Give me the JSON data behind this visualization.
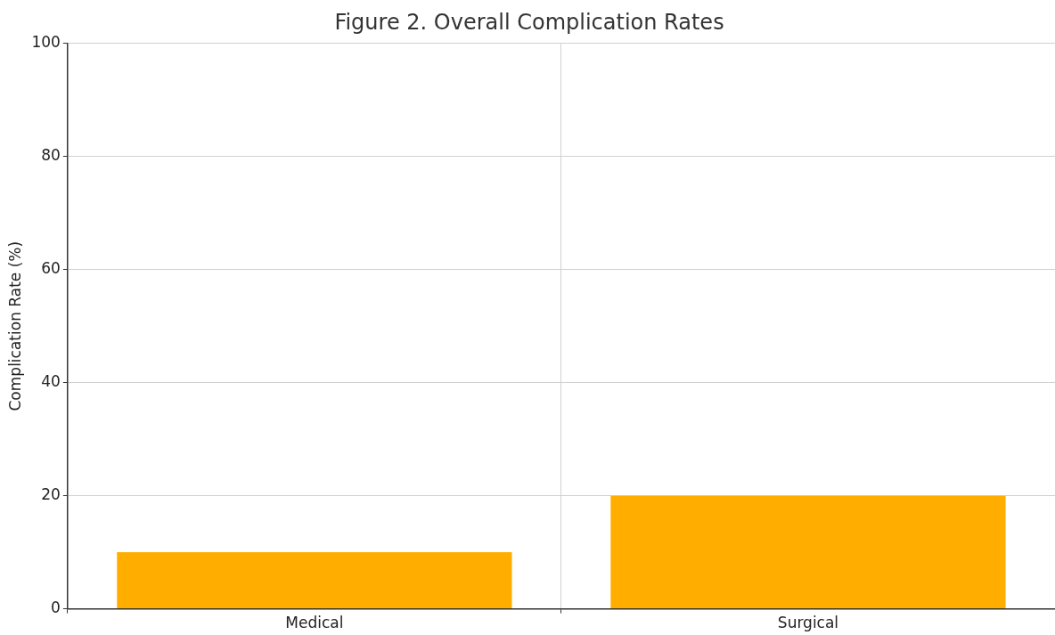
{
  "chart_data": {
    "type": "bar",
    "title": "Figure 2. Overall Complication Rates",
    "ylabel": "Complication Rate (%)",
    "categories": [
      "Medical",
      "Surgical"
    ],
    "values": [
      10,
      20
    ],
    "color": "#ffae00",
    "ylim": [
      0,
      100
    ],
    "yticks": [
      0,
      20,
      40,
      60,
      80,
      100
    ],
    "grid": true
  }
}
